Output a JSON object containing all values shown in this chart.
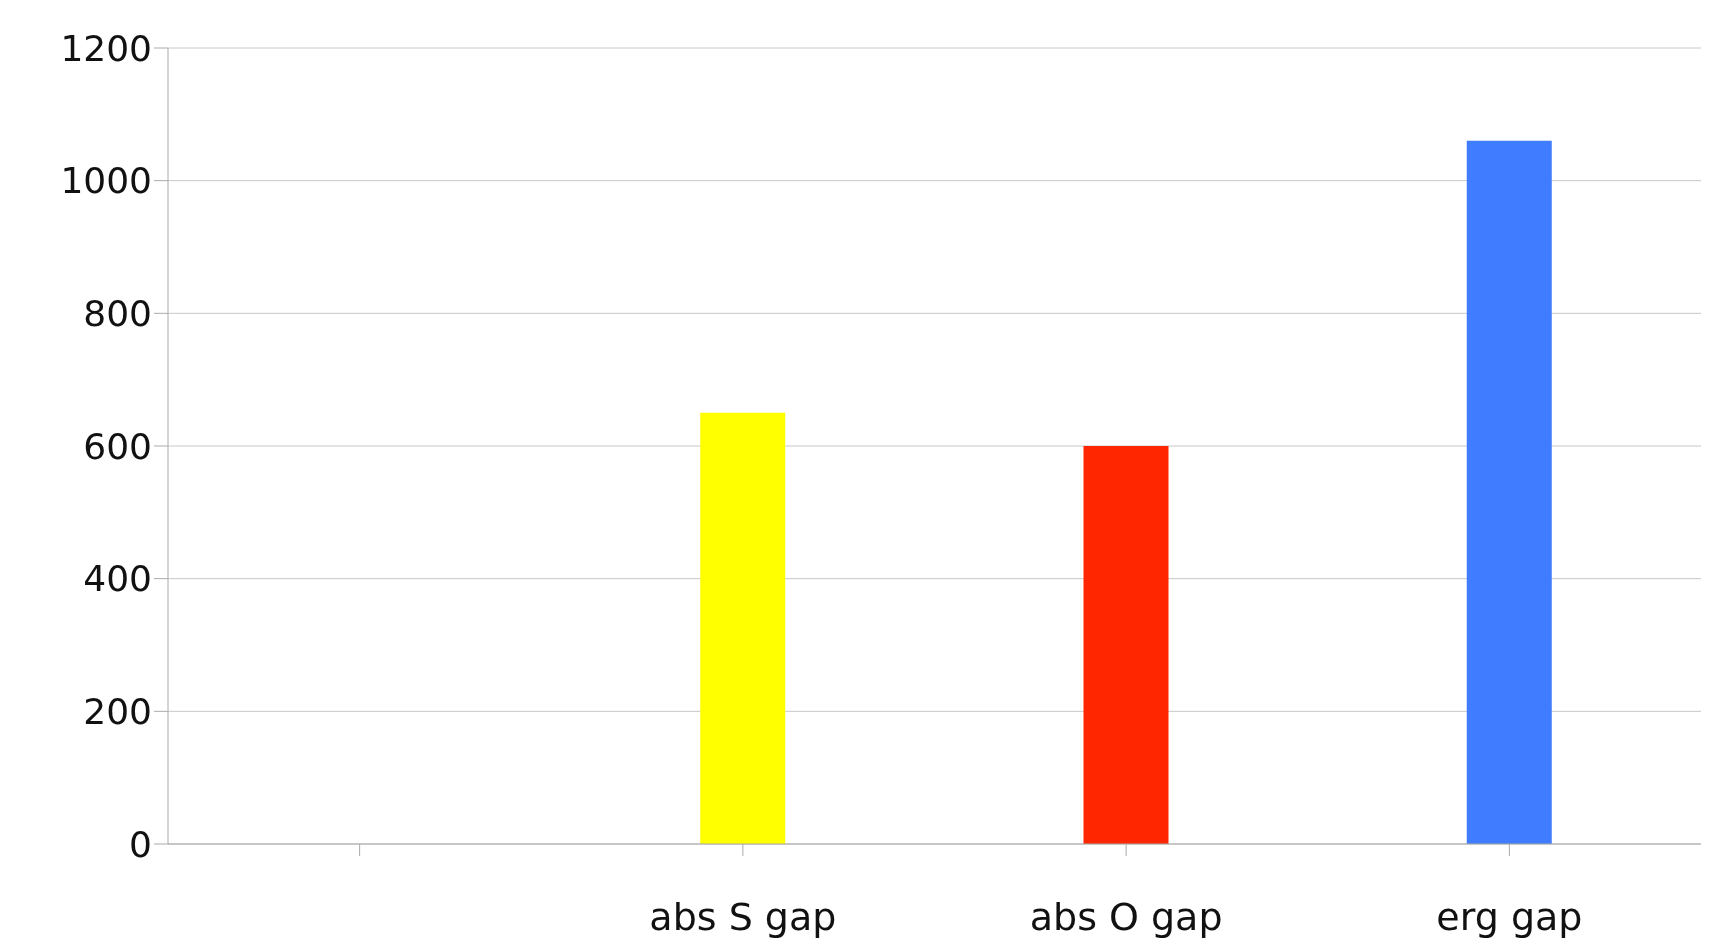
{
  "chart_data": {
    "type": "bar",
    "categories": [
      null,
      "abs S gap",
      "abs O gap",
      "erg gap"
    ],
    "values": [
      null,
      650,
      600,
      1060
    ],
    "colors": [
      "#ffffff",
      "#ffff00",
      "#ff2600",
      "#3f7cff"
    ],
    "ylim": [
      0,
      1200
    ],
    "yticks": [
      0,
      200,
      400,
      600,
      800,
      1000,
      1200
    ],
    "grid": "y"
  }
}
